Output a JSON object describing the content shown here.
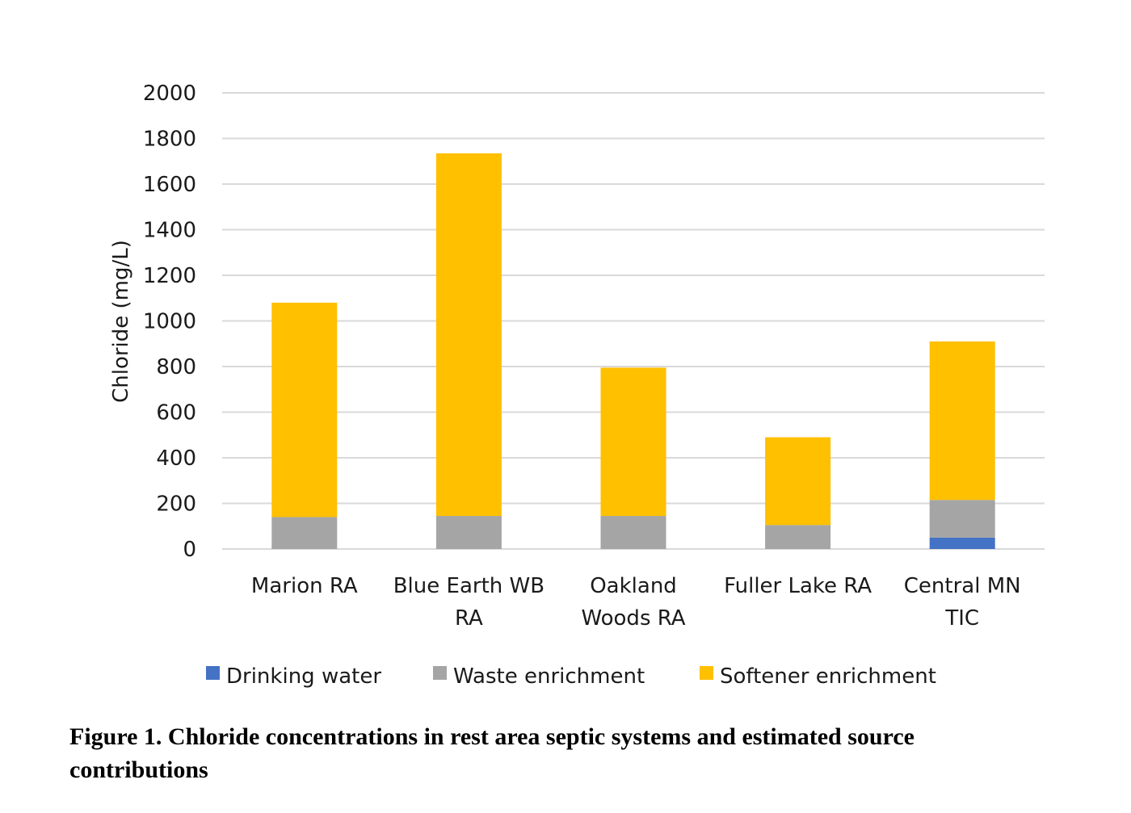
{
  "chart_data": {
    "type": "bar",
    "stacked": true,
    "title": "",
    "xlabel": "",
    "ylabel": "Chloride (mg/L)",
    "ylim": [
      0,
      2000
    ],
    "yticks": [
      0,
      200,
      400,
      600,
      800,
      1000,
      1200,
      1400,
      1600,
      1800,
      2000
    ],
    "ytick_labels": [
      "0",
      "200",
      "400",
      "600",
      "800",
      "1000",
      "1200",
      "1400",
      "1600",
      "1800",
      "2000"
    ],
    "grid": true,
    "legend_position": "bottom",
    "categories": [
      [
        "Marion RA"
      ],
      [
        "Blue Earth WB",
        "RA"
      ],
      [
        "Oakland",
        "Woods RA"
      ],
      [
        "Fuller Lake RA"
      ],
      [
        "Central MN",
        "TIC"
      ]
    ],
    "category_names": [
      "Marion RA",
      "Blue Earth WB RA",
      "Oakland Woods RA",
      "Fuller Lake RA",
      "Central MN TIC"
    ],
    "series": [
      {
        "name": "Drinking water",
        "color": "#4472c4",
        "values": [
          0,
          0,
          0,
          0,
          50
        ]
      },
      {
        "name": "Waste enrichment",
        "color": "#a5a5a5",
        "values": [
          140,
          145,
          145,
          105,
          165
        ]
      },
      {
        "name": "Softener enrichment",
        "color": "#ffc000",
        "values": [
          940,
          1590,
          650,
          385,
          695
        ]
      }
    ]
  },
  "caption": "Figure 1. Chloride concentrations in rest area septic systems and estimated source contributions"
}
